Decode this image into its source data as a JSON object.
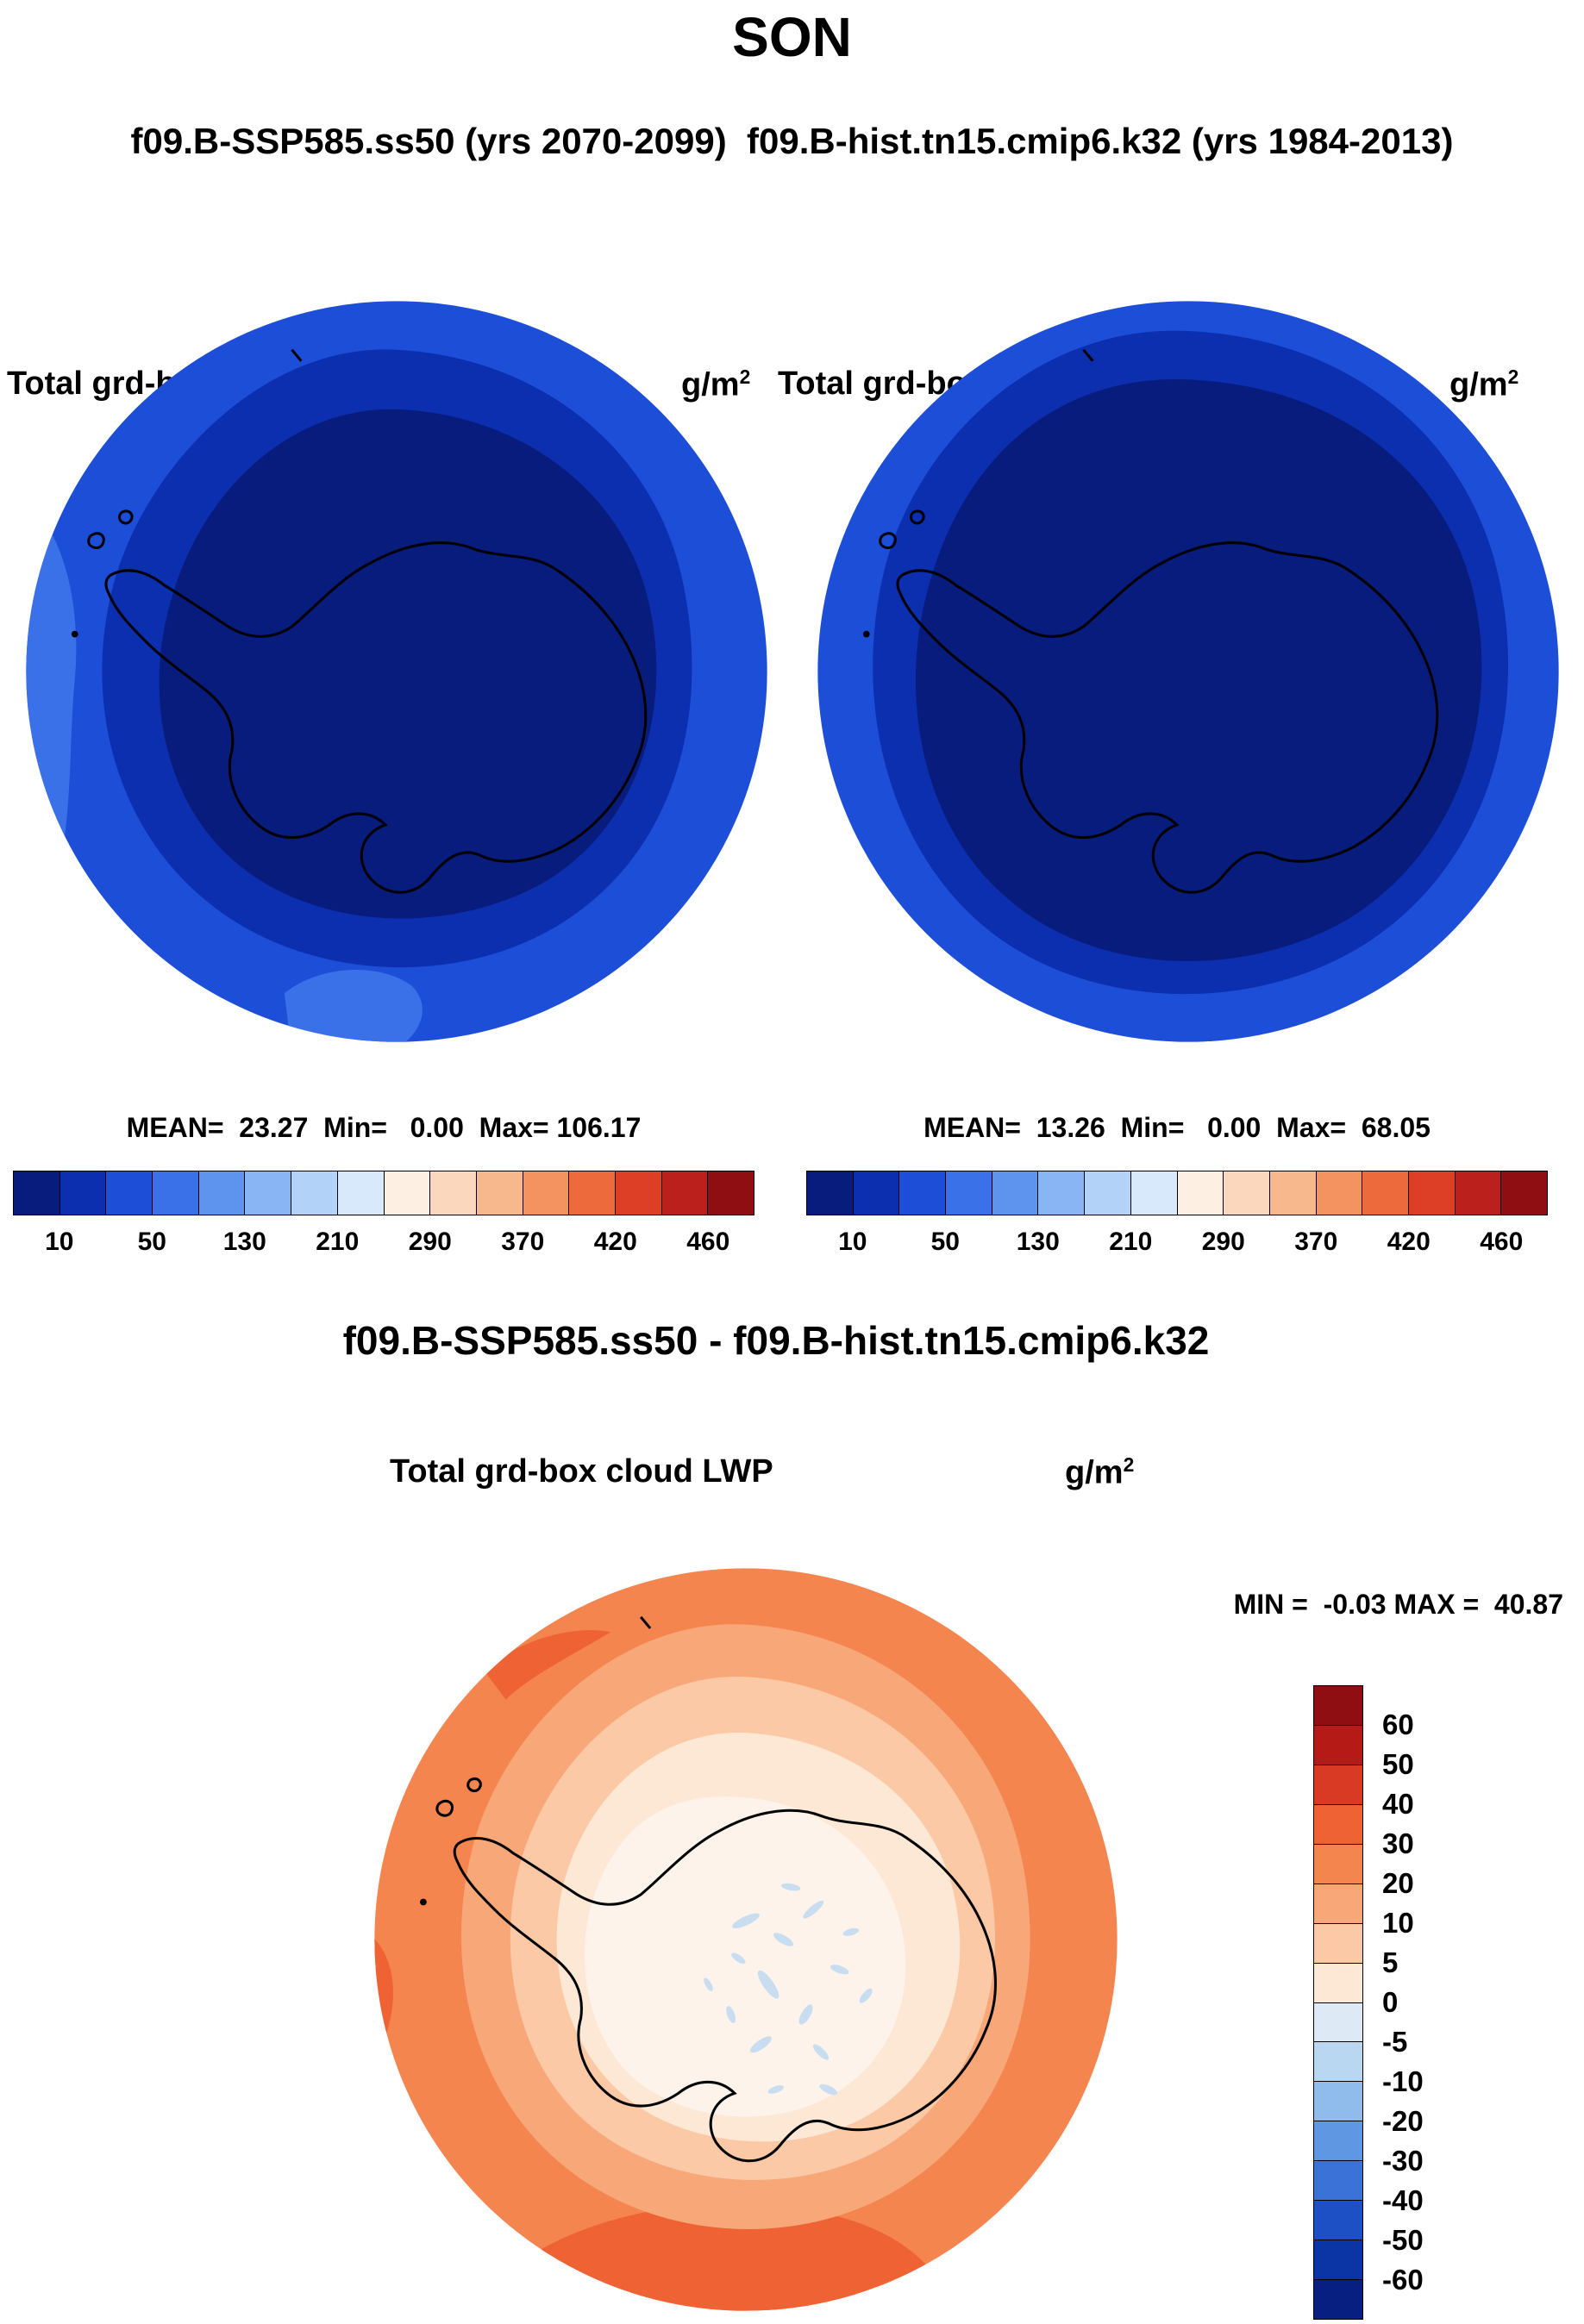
{
  "title": "SON",
  "subtitle": "f09.B-SSP585.ss50 (yrs 2070-2099)  f09.B-hist.tn15.cmip6.k32 (yrs 1984-2013)",
  "panels": {
    "top_left": {
      "var_label": "Total grd-box cloud LWP",
      "units_base": "g/m",
      "units_exp": "2",
      "stats": "MEAN=  23.27  Min=   0.00  Max= 106.17"
    },
    "top_right": {
      "var_label": "Total grd-box cloud LWP",
      "units_base": "g/m",
      "units_exp": "2",
      "stats": "MEAN=  13.26  Min=   0.00  Max=  68.05"
    },
    "diff": {
      "section_title": "f09.B-SSP585.ss50 - f09.B-hist.tn15.cmip6.k32",
      "var_label": "Total grd-box cloud LWP",
      "units_base": "g/m",
      "units_exp": "2",
      "minmax": "MIN =  -0.03 MAX =  40.87"
    }
  },
  "colorbar_lwp": {
    "tick_labels": [
      "10",
      "50",
      "130",
      "210",
      "290",
      "370",
      "420",
      "460"
    ],
    "colors": [
      "#071c7c",
      "#0b2fae",
      "#1c4ed8",
      "#3a70e8",
      "#5f94ee",
      "#8ab5f4",
      "#b3d2f8",
      "#d8e9fb",
      "#fdf0e3",
      "#fbd8bd",
      "#f8b88e",
      "#f4935f",
      "#ec6a3c",
      "#dc3f26",
      "#bc201c",
      "#8f0e12"
    ]
  },
  "colorbar_diff": {
    "tick_labels": [
      "60",
      "50",
      "40",
      "30",
      "20",
      "10",
      "5",
      "0",
      "-5",
      "-10",
      "-20",
      "-30",
      "-40",
      "-50",
      "-60"
    ],
    "colors": [
      "#8f0e12",
      "#b61a17",
      "#d93a24",
      "#ee6234",
      "#f4854f",
      "#f8a878",
      "#fbc9a6",
      "#fde8d6",
      "#ddeaf6",
      "#b9d7f1",
      "#8fbceb",
      "#6097e2",
      "#3a72d8",
      "#1c50c4",
      "#0b35a4",
      "#071f80"
    ]
  },
  "map_colors": {
    "lwp_outer": "#1c4ed8",
    "lwp_rim": "#3a70e8",
    "lwp_mid": "#0b2fae",
    "lwp_core": "#071c7c",
    "diff_outer": "#f4854f",
    "diff_dark": "#ee6234",
    "diff_band1": "#f8a878",
    "diff_band2": "#fbc9a6",
    "diff_band3": "#fde8d6",
    "diff_center": "#fdf3ea",
    "diff_speckle": "#c9ddf0",
    "coastline": "#000000"
  },
  "chart_data": [
    {
      "type": "heatmap",
      "subtype": "south-polar-stereographic-contour-map",
      "title": "Total grd-box cloud LWP",
      "units": "g/m^2",
      "season": "SON",
      "case": "f09.B-SSP585.ss50 (yrs 2070-2099)",
      "stats": {
        "mean": 23.27,
        "min": 0.0,
        "max": 106.17
      },
      "labeled_levels": [
        10,
        50,
        130,
        210,
        290,
        370,
        420,
        460
      ],
      "palette": [
        "#071c7c",
        "#0b2fae",
        "#1c4ed8",
        "#3a70e8",
        "#5f94ee",
        "#8ab5f4",
        "#b3d2f8",
        "#d8e9fb",
        "#fdf0e3",
        "#fbd8bd",
        "#f8b88e",
        "#f4935f",
        "#ec6a3c",
        "#dc3f26",
        "#bc201c",
        "#8f0e12"
      ],
      "legend_position": "bottom",
      "description": "Antarctic polar cap map; values low everywhere: darkest blue (<10 g/m2) over the continent and interior ocean, brighter blues (10-130 g/m2) toward the map rim."
    },
    {
      "type": "heatmap",
      "subtype": "south-polar-stereographic-contour-map",
      "title": "Total grd-box cloud LWP",
      "units": "g/m^2",
      "season": "SON",
      "case": "f09.B-hist.tn15.cmip6.k32 (yrs 1984-2013)",
      "stats": {
        "mean": 13.26,
        "min": 0.0,
        "max": 68.05
      },
      "labeled_levels": [
        10,
        50,
        130,
        210,
        290,
        370,
        420,
        460
      ],
      "palette": [
        "#071c7c",
        "#0b2fae",
        "#1c4ed8",
        "#3a70e8",
        "#5f94ee",
        "#8ab5f4",
        "#b3d2f8",
        "#d8e9fb",
        "#fdf0e3",
        "#fbd8bd",
        "#f8b88e",
        "#f4935f",
        "#ec6a3c",
        "#dc3f26",
        "#bc201c",
        "#8f0e12"
      ],
      "legend_position": "bottom",
      "description": "Same map for historical run; darkest blue (<10 g/m2) covers almost the whole cap with a thin brighter blue ring at the rim."
    },
    {
      "type": "heatmap",
      "subtype": "south-polar-stereographic-contour-map",
      "title": "Total grd-box cloud LWP",
      "units": "g/m^2",
      "season": "SON",
      "case": "f09.B-SSP585.ss50 - f09.B-hist.tn15.cmip6.k32",
      "stats": {
        "min": -0.03,
        "max": 40.87
      },
      "labeled_levels": [
        60,
        50,
        40,
        30,
        20,
        10,
        5,
        0,
        -5,
        -10,
        -20,
        -30,
        -40,
        -50,
        -60
      ],
      "palette": [
        "#8f0e12",
        "#b61a17",
        "#d93a24",
        "#ee6234",
        "#f4854f",
        "#f8a878",
        "#fbc9a6",
        "#fde8d6",
        "#ddeaf6",
        "#b9d7f1",
        "#8fbceb",
        "#6097e2",
        "#3a72d8",
        "#1c50c4",
        "#0b35a4",
        "#071f80"
      ],
      "legend_position": "right",
      "description": "Difference map: positive (orange, 10-30 g/m2) ring over the ocean, near-zero (pale) over the continent with scattered tiny slightly-negative light blue patches in the interior."
    }
  ]
}
